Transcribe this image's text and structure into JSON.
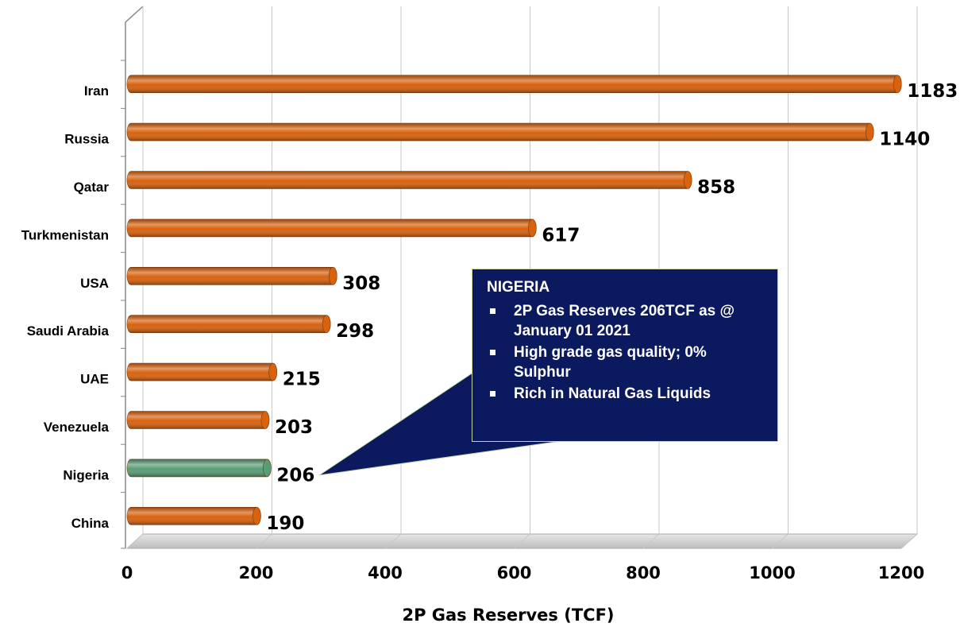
{
  "chart_data": {
    "type": "bar",
    "orientation": "horizontal",
    "xlabel": "2P Gas Reserves (TCF)",
    "categories": [
      "Iran",
      "Russia",
      "Qatar",
      "Turkmenistan",
      "USA",
      "Saudi Arabia",
      "UAE",
      "Venezuela",
      "Nigeria",
      "China"
    ],
    "values": [
      1183,
      1140,
      858,
      617,
      308,
      298,
      215,
      203,
      206,
      190
    ],
    "colors": [
      "#d8620e",
      "#d8620e",
      "#d8620e",
      "#d8620e",
      "#d8620e",
      "#d8620e",
      "#d8620e",
      "#d8620e",
      "#5a9c76",
      "#d8620e"
    ],
    "xlim": [
      0,
      1200
    ],
    "xticks": [
      0,
      200,
      400,
      600,
      800,
      1000,
      1200
    ],
    "grid": true,
    "annotation": {
      "title": "NIGERIA",
      "bullets": [
        "2P Gas Reserves 206TCF as @ January 01 2021",
        "High grade gas quality; 0% Sulphur",
        "Rich in Natural Gas Liquids"
      ]
    }
  }
}
